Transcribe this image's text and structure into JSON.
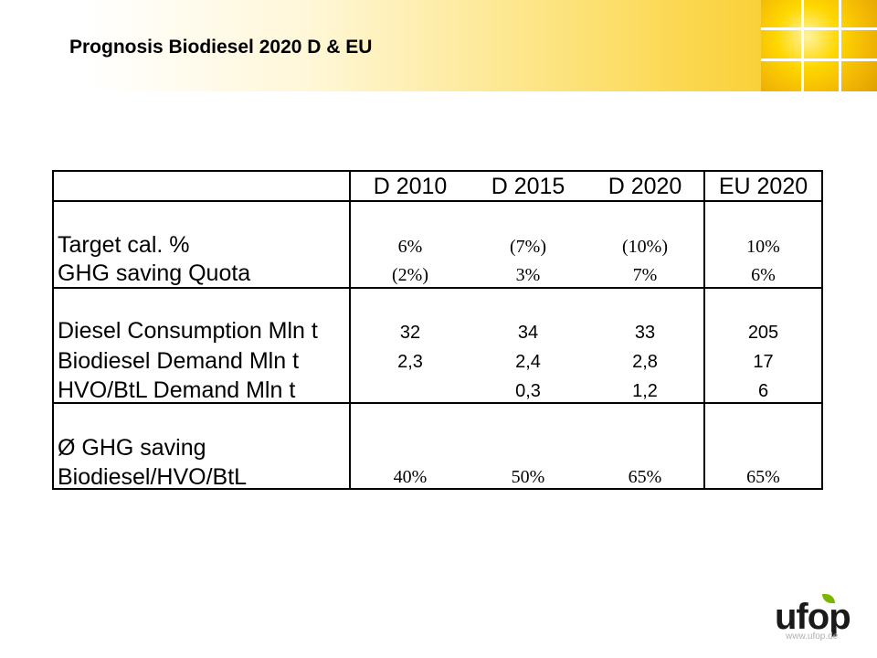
{
  "title": "Prognosis Biodiesel 2020 D & EU",
  "colors": {
    "header_accent": "#f5c518",
    "logo_green": "#7ab800"
  },
  "table": {
    "columns": [
      "D 2010",
      "D 2015",
      "D 2020",
      "EU 2020"
    ],
    "rows": [
      {
        "label": "Target cal. %",
        "values": [
          "6%",
          "(7%)",
          "(10%)",
          "10%"
        ]
      },
      {
        "label": "GHG saving Quota",
        "values": [
          "(2%)",
          "3%",
          "7%",
          "6%"
        ]
      },
      {
        "label": "Diesel Consumption Mln t",
        "values": [
          "32",
          "34",
          "33",
          "205"
        ]
      },
      {
        "label": "Biodiesel Demand Mln t",
        "values": [
          "2,3",
          "2,4",
          "2,8",
          "17"
        ]
      },
      {
        "label": "HVO/BtL Demand Mln t",
        "values": [
          "",
          "0,3",
          "1,2",
          "6"
        ]
      },
      {
        "label_line1": "Ø GHG saving",
        "label_line2": "Biodiesel/HVO/BtL",
        "values": [
          "40%",
          "50%",
          "65%",
          "65%"
        ]
      }
    ]
  },
  "logo": {
    "text": "ufop",
    "url": "www.ufop.de"
  }
}
